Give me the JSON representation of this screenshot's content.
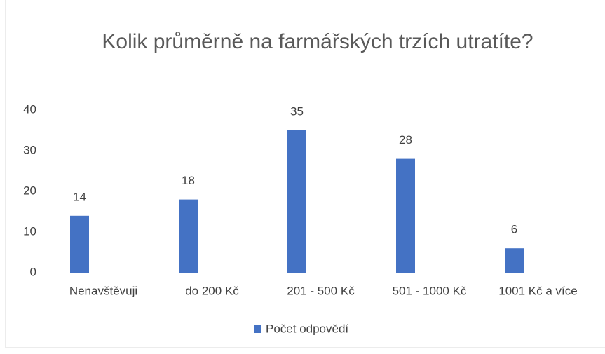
{
  "chart_data": {
    "type": "bar",
    "title": "Kolik průměrně na farmářských trzích utratíte?",
    "categories": [
      "Nenavštěvuji",
      "do 200 Kč",
      "201 - 500 Kč",
      "501 - 1000 Kč",
      "1001 Kč a více"
    ],
    "series": [
      {
        "name": "Počet odpovědí",
        "color": "#4472c4",
        "values": [
          14,
          18,
          35,
          28,
          6
        ]
      }
    ],
    "ylim": [
      0,
      40
    ],
    "yticks": [
      0,
      10,
      20,
      30,
      40
    ],
    "grid": false,
    "legend": "bottom"
  }
}
